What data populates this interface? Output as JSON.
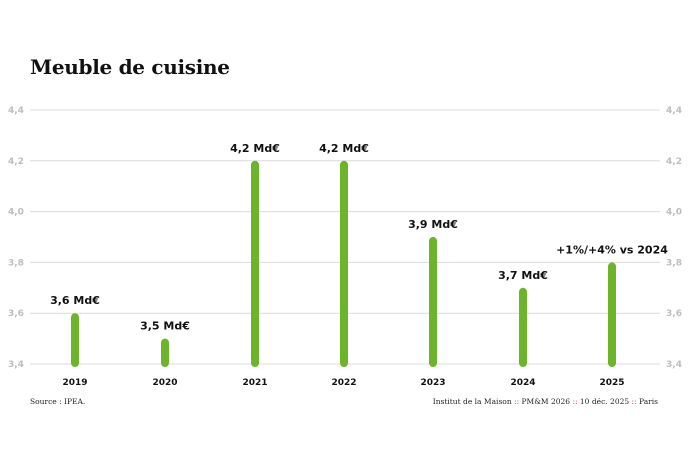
{
  "chart_data": {
    "type": "bar",
    "title": "Meuble de cuisine",
    "categories": [
      "2019",
      "2020",
      "2021",
      "2022",
      "2023",
      "2024",
      "2025"
    ],
    "values": [
      3.6,
      3.5,
      4.2,
      4.2,
      3.9,
      3.7,
      3.8
    ],
    "data_labels": [
      "3,6 Md€",
      "3,5 Md€",
      "4,2 Md€",
      "4,2 Md€",
      "3,9 Md€",
      "3,7 Md€",
      "+1%/+4% vs 2024"
    ],
    "yticks": [
      "3,4",
      "3,6",
      "3,8",
      "4,0",
      "4,2",
      "4,4"
    ],
    "ytick_values": [
      3.4,
      3.6,
      3.8,
      4.0,
      4.2,
      4.4
    ],
    "ylim": [
      3.4,
      4.4
    ],
    "xlabel": "",
    "ylabel": "",
    "grid": true,
    "bar_color": "#6cb52a"
  },
  "footer": {
    "source": "Source : IPEA.",
    "credit_org": "Institut de la Maison",
    "credit_pub": "PM&M 2026",
    "credit_date": "10 déc. 2025",
    "credit_place": "Paris",
    "separator": "::"
  }
}
